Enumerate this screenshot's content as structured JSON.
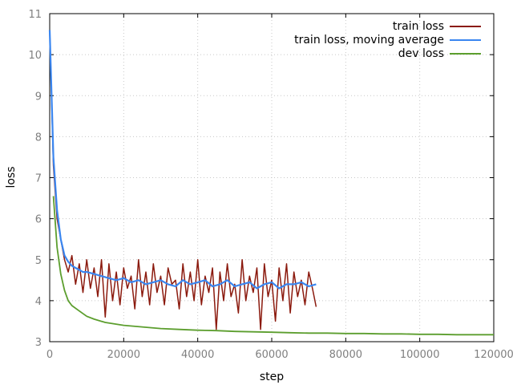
{
  "chart_data": {
    "type": "line",
    "xlabel": "step",
    "ylabel": "loss",
    "xlim": [
      0,
      120000
    ],
    "ylim": [
      3,
      11
    ],
    "x_ticks": [
      "0",
      "20000",
      "40000",
      "60000",
      "80000",
      "100000",
      "120000"
    ],
    "y_ticks": [
      "3",
      "4",
      "5",
      "6",
      "7",
      "8",
      "9",
      "10",
      "11"
    ],
    "grid": true,
    "legend_position": "top-right",
    "series": [
      {
        "name": "train loss",
        "color": "#8b1a0e",
        "x": [
          0,
          1000,
          2000,
          3000,
          4000,
          5000,
          6000,
          7000,
          8000,
          9000,
          10000,
          11000,
          12000,
          13000,
          14000,
          15000,
          16000,
          17000,
          18000,
          19000,
          20000,
          21000,
          22000,
          23000,
          24000,
          25000,
          26000,
          27000,
          28000,
          29000,
          30000,
          31000,
          32000,
          33000,
          34000,
          35000,
          36000,
          37000,
          38000,
          39000,
          40000,
          41000,
          42000,
          43000,
          44000,
          45000,
          46000,
          47000,
          48000,
          49000,
          50000,
          51000,
          52000,
          53000,
          54000,
          55000,
          56000,
          57000,
          58000,
          59000,
          60000,
          61000,
          62000,
          63000,
          64000,
          65000,
          66000,
          67000,
          68000,
          69000,
          70000,
          71000,
          72000
        ],
        "y": [
          10.6,
          7.3,
          6.0,
          5.5,
          5.0,
          4.7,
          5.1,
          4.4,
          4.9,
          4.2,
          5.0,
          4.3,
          4.8,
          4.1,
          5.0,
          3.6,
          4.9,
          4.0,
          4.7,
          3.9,
          4.8,
          4.3,
          4.6,
          3.8,
          5.0,
          4.1,
          4.7,
          3.9,
          4.9,
          4.2,
          4.6,
          3.9,
          4.8,
          4.4,
          4.5,
          3.8,
          4.9,
          4.1,
          4.7,
          4.0,
          5.0,
          3.9,
          4.6,
          4.2,
          4.8,
          3.3,
          4.7,
          4.0,
          4.9,
          4.1,
          4.4,
          3.7,
          5.0,
          4.0,
          4.6,
          4.2,
          4.8,
          3.3,
          4.9,
          4.1,
          4.5,
          3.5,
          4.8,
          4.0,
          4.9,
          3.7,
          4.7,
          4.1,
          4.5,
          3.9,
          4.7,
          4.3,
          3.85
        ]
      },
      {
        "name": "train loss, moving average",
        "color": "#3a86f0",
        "x": [
          0,
          1000,
          2000,
          3000,
          4000,
          5000,
          6000,
          7000,
          8000,
          9000,
          10000,
          12000,
          14000,
          16000,
          18000,
          20000,
          22000,
          24000,
          26000,
          28000,
          30000,
          32000,
          34000,
          36000,
          38000,
          40000,
          42000,
          44000,
          46000,
          48000,
          50000,
          52000,
          54000,
          56000,
          58000,
          60000,
          62000,
          64000,
          66000,
          68000,
          70000,
          72000
        ],
        "y": [
          10.6,
          7.5,
          6.2,
          5.5,
          5.1,
          4.95,
          4.85,
          4.8,
          4.75,
          4.7,
          4.7,
          4.65,
          4.6,
          4.55,
          4.5,
          4.55,
          4.45,
          4.5,
          4.4,
          4.45,
          4.5,
          4.4,
          4.35,
          4.5,
          4.4,
          4.45,
          4.5,
          4.35,
          4.4,
          4.5,
          4.35,
          4.4,
          4.45,
          4.3,
          4.4,
          4.45,
          4.3,
          4.4,
          4.4,
          4.45,
          4.35,
          4.4
        ]
      },
      {
        "name": "dev loss",
        "color": "#5c9e2e",
        "x": [
          1000,
          2000,
          3000,
          4000,
          5000,
          6000,
          8000,
          10000,
          12000,
          15000,
          20000,
          25000,
          30000,
          35000,
          40000,
          45000,
          50000,
          55000,
          60000,
          65000,
          70000,
          75000,
          80000,
          85000,
          90000,
          95000,
          100000,
          105000,
          110000,
          115000,
          120000
        ],
        "y": [
          6.55,
          5.3,
          4.65,
          4.25,
          4.0,
          3.88,
          3.75,
          3.62,
          3.55,
          3.47,
          3.4,
          3.36,
          3.32,
          3.3,
          3.28,
          3.27,
          3.25,
          3.24,
          3.23,
          3.22,
          3.21,
          3.21,
          3.2,
          3.2,
          3.19,
          3.19,
          3.18,
          3.18,
          3.17,
          3.17,
          3.17
        ]
      }
    ]
  }
}
